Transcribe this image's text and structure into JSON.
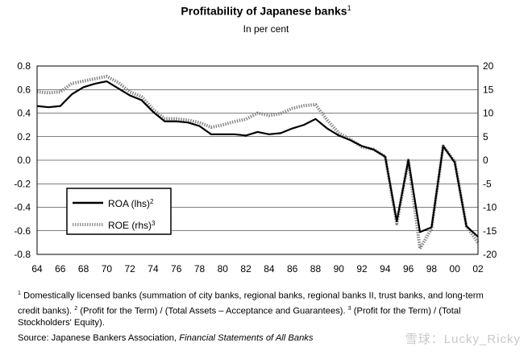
{
  "title": "Profitability of Japanese banks",
  "title_note": "1",
  "subtitle": "In per cent",
  "footnote": {
    "mark1": "1",
    "text1": " Domestically licensed banks (summation of city banks, regional banks, regional banks II, trust banks, and long-term credit banks). ",
    "mark2": "2",
    "text2": " (Profit for the Term) / (Total Assets – Acceptance and Guarantees). ",
    "mark3": "3",
    "text3": " (Profit for the Term) / (Total Stockholders' Equity)."
  },
  "source": {
    "prefix": "Source: Japanese Bankers Association, ",
    "italic": "Financial Statements of All Banks"
  },
  "watermark": "雪球：Lucky_Ricky",
  "chart_data": {
    "type": "line",
    "xlim": [
      1964,
      2002
    ],
    "x_ticks": [
      "64",
      "66",
      "68",
      "70",
      "72",
      "74",
      "76",
      "78",
      "80",
      "82",
      "84",
      "86",
      "88",
      "90",
      "92",
      "94",
      "96",
      "98",
      "00",
      "02"
    ],
    "y_left": {
      "lim": [
        -0.8,
        0.8
      ],
      "ticks": [
        "0.8",
        "0.6",
        "0.4",
        "0.2",
        "0.0",
        "-0.2",
        "-0.4",
        "-0.6",
        "-0.8"
      ]
    },
    "y_right": {
      "lim": [
        -20,
        20
      ],
      "ticks": [
        "20",
        "15",
        "10",
        "5",
        "0",
        "-5",
        "-10",
        "-15",
        "-20"
      ]
    },
    "grid": "horizontal",
    "legend_position": "lower-left",
    "series": [
      {
        "name": "ROA (lhs)",
        "note": "2",
        "axis": "left",
        "color": "#000000",
        "style": "solid",
        "x": [
          1964,
          1965,
          1966,
          1967,
          1968,
          1969,
          1970,
          1971,
          1972,
          1973,
          1974,
          1975,
          1976,
          1977,
          1978,
          1979,
          1980,
          1981,
          1982,
          1983,
          1984,
          1985,
          1986,
          1987,
          1988,
          1989,
          1990,
          1991,
          1992,
          1993,
          1994,
          1995,
          1996,
          1997,
          1998,
          1999,
          2000,
          2001,
          2002
        ],
        "values": [
          0.46,
          0.45,
          0.46,
          0.56,
          0.62,
          0.65,
          0.67,
          0.61,
          0.55,
          0.51,
          0.41,
          0.33,
          0.33,
          0.32,
          0.29,
          0.22,
          0.22,
          0.22,
          0.21,
          0.24,
          0.22,
          0.23,
          0.27,
          0.3,
          0.35,
          0.27,
          0.21,
          0.17,
          0.12,
          0.09,
          0.03,
          -0.52,
          0.0,
          -0.61,
          -0.57,
          0.12,
          -0.02,
          -0.56,
          -0.65
        ]
      },
      {
        "name": "ROE (rhs)",
        "note": "3",
        "axis": "right",
        "color": "#808080",
        "style": "dotted",
        "x": [
          1964,
          1965,
          1966,
          1967,
          1968,
          1969,
          1970,
          1971,
          1972,
          1973,
          1974,
          1975,
          1976,
          1977,
          1978,
          1979,
          1980,
          1981,
          1982,
          1983,
          1984,
          1985,
          1986,
          1987,
          1988,
          1989,
          1990,
          1991,
          1992,
          1993,
          1994,
          1995,
          1996,
          1997,
          1998,
          1999,
          2000,
          2001,
          2002
        ],
        "values": [
          14.5,
          14.3,
          14.5,
          16.3,
          16.8,
          17.3,
          17.8,
          16.5,
          14.5,
          13.5,
          10.8,
          8.8,
          8.8,
          8.5,
          8.0,
          7.0,
          7.5,
          8.2,
          8.7,
          10.0,
          9.5,
          9.9,
          11.0,
          11.6,
          11.8,
          8.5,
          5.8,
          4.4,
          2.8,
          2.3,
          0.8,
          -13.5,
          0.0,
          -18.8,
          -14.5,
          3.0,
          -0.3,
          -14.0,
          -17.5
        ]
      }
    ]
  }
}
